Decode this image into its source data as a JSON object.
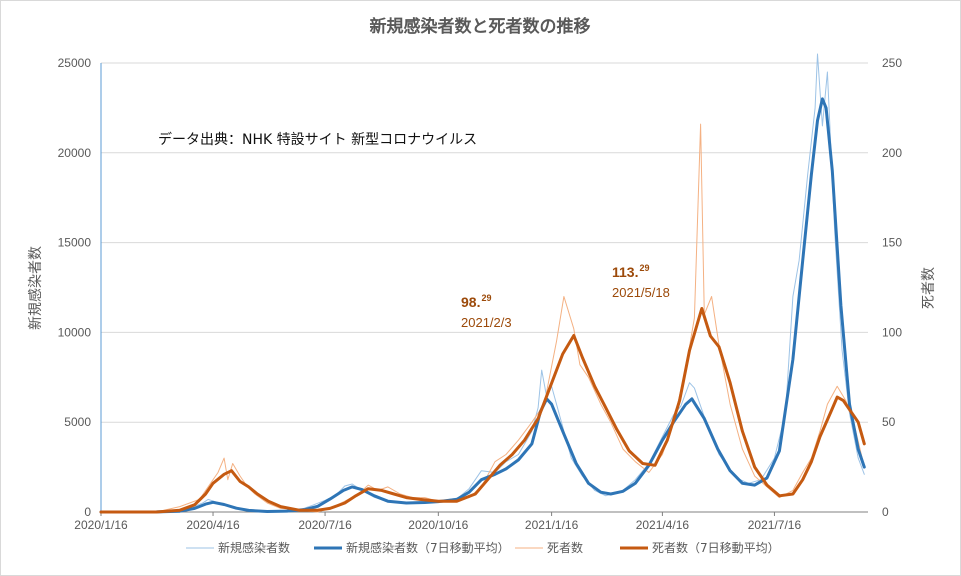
{
  "chart_data": {
    "type": "line",
    "title": "新規感染者数と死者数の推移",
    "source_note": "データ出典：NHK 特設サイト 新型コロナウイルス",
    "ylabel_left": "新規感染者数",
    "ylabel_right": "死者数",
    "ylim_left": [
      0,
      25000
    ],
    "ylim_right": [
      0,
      250
    ],
    "yticks_left": [
      "0",
      "5000",
      "10000",
      "15000",
      "20000",
      "25000"
    ],
    "yticks_right": [
      "0",
      "50",
      "100",
      "150",
      "200",
      "250"
    ],
    "x_start": "2020-01-16",
    "x_end": "2021-09-30",
    "xticks": [
      {
        "date": "2020-01-16",
        "label": "2020/1/16"
      },
      {
        "date": "2020-04-16",
        "label": "2020/4/16"
      },
      {
        "date": "2020-07-16",
        "label": "2020/7/16"
      },
      {
        "date": "2020-10-16",
        "label": "2020/10/16"
      },
      {
        "date": "2021-01-16",
        "label": "2021/1/16"
      },
      {
        "date": "2021-04-16",
        "label": "2021/4/16"
      },
      {
        "date": "2021-07-16",
        "label": "2021/7/16"
      }
    ],
    "grid": true,
    "legend_position": "bottom",
    "colors": {
      "cases_daily": "#9dc3e6",
      "cases_avg": "#2e75b6",
      "deaths_daily": "#f4b183",
      "deaths_avg": "#c55a11",
      "grid": "#d9d9d9",
      "annotation": "#9c4a0a"
    },
    "annotations": [
      {
        "value": "98.",
        "sup": "29",
        "date": "2021/2/3"
      },
      {
        "value": "113.",
        "sup": "29",
        "date": "2021/5/18"
      }
    ],
    "series": [
      {
        "name": "新規感染者数",
        "axis": "left",
        "style": "daily",
        "points": [
          [
            "2020-01-16",
            0
          ],
          [
            "2020-03-01",
            15
          ],
          [
            "2020-03-20",
            60
          ],
          [
            "2020-04-01",
            320
          ],
          [
            "2020-04-08",
            520
          ],
          [
            "2020-04-12",
            700
          ],
          [
            "2020-04-20",
            520
          ],
          [
            "2020-04-30",
            270
          ],
          [
            "2020-05-10",
            110
          ],
          [
            "2020-05-25",
            30
          ],
          [
            "2020-06-10",
            50
          ],
          [
            "2020-06-25",
            110
          ],
          [
            "2020-07-05",
            350
          ],
          [
            "2020-07-16",
            650
          ],
          [
            "2020-07-25",
            950
          ],
          [
            "2020-08-01",
            1450
          ],
          [
            "2020-08-07",
            1560
          ],
          [
            "2020-08-15",
            1200
          ],
          [
            "2020-08-25",
            820
          ],
          [
            "2020-09-05",
            560
          ],
          [
            "2020-09-20",
            500
          ],
          [
            "2020-10-01",
            560
          ],
          [
            "2020-10-16",
            600
          ],
          [
            "2020-11-01",
            780
          ],
          [
            "2020-11-10",
            1300
          ],
          [
            "2020-11-20",
            2300
          ],
          [
            "2020-12-01",
            2200
          ],
          [
            "2020-12-10",
            2800
          ],
          [
            "2020-12-20",
            3200
          ],
          [
            "2020-12-31",
            4500
          ],
          [
            "2021-01-05",
            5800
          ],
          [
            "2021-01-08",
            7900
          ],
          [
            "2021-01-12",
            6400
          ],
          [
            "2021-01-16",
            7000
          ],
          [
            "2021-01-22",
            5500
          ],
          [
            "2021-02-01",
            3000
          ],
          [
            "2021-02-10",
            2000
          ],
          [
            "2021-02-20",
            1200
          ],
          [
            "2021-03-01",
            900
          ],
          [
            "2021-03-15",
            1200
          ],
          [
            "2021-03-25",
            1800
          ],
          [
            "2021-04-05",
            2700
          ],
          [
            "2021-04-16",
            4200
          ],
          [
            "2021-04-25",
            5400
          ],
          [
            "2021-05-01",
            5900
          ],
          [
            "2021-05-08",
            7200
          ],
          [
            "2021-05-12",
            6900
          ],
          [
            "2021-05-20",
            5300
          ],
          [
            "2021-06-01",
            3200
          ],
          [
            "2021-06-15",
            1900
          ],
          [
            "2021-06-25",
            1600
          ],
          [
            "2021-07-05",
            1800
          ],
          [
            "2021-07-16",
            3000
          ],
          [
            "2021-07-25",
            5500
          ],
          [
            "2021-07-31",
            12000
          ],
          [
            "2021-08-05",
            14000
          ],
          [
            "2021-08-12",
            18800
          ],
          [
            "2021-08-18",
            22500
          ],
          [
            "2021-08-20",
            25500
          ],
          [
            "2021-08-24",
            21500
          ],
          [
            "2021-08-28",
            24500
          ],
          [
            "2021-09-03",
            15500
          ],
          [
            "2021-09-09",
            9000
          ],
          [
            "2021-09-15",
            5500
          ],
          [
            "2021-09-22",
            3000
          ],
          [
            "2021-09-27",
            2100
          ]
        ]
      },
      {
        "name": "新規感染者数（7日移動平均）",
        "axis": "left",
        "style": "avg",
        "points": [
          [
            "2020-01-16",
            0
          ],
          [
            "2020-03-01",
            8
          ],
          [
            "2020-03-20",
            45
          ],
          [
            "2020-04-01",
            200
          ],
          [
            "2020-04-10",
            440
          ],
          [
            "2020-04-16",
            540
          ],
          [
            "2020-04-25",
            420
          ],
          [
            "2020-05-05",
            210
          ],
          [
            "2020-05-15",
            90
          ],
          [
            "2020-05-30",
            30
          ],
          [
            "2020-06-15",
            50
          ],
          [
            "2020-06-30",
            140
          ],
          [
            "2020-07-10",
            320
          ],
          [
            "2020-07-20",
            720
          ],
          [
            "2020-07-31",
            1200
          ],
          [
            "2020-08-07",
            1400
          ],
          [
            "2020-08-15",
            1250
          ],
          [
            "2020-08-25",
            900
          ],
          [
            "2020-09-05",
            600
          ],
          [
            "2020-09-20",
            500
          ],
          [
            "2020-10-05",
            530
          ],
          [
            "2020-10-16",
            580
          ],
          [
            "2020-10-31",
            700
          ],
          [
            "2020-11-10",
            1100
          ],
          [
            "2020-11-20",
            1800
          ],
          [
            "2020-12-01",
            2100
          ],
          [
            "2020-12-10",
            2400
          ],
          [
            "2020-12-20",
            2900
          ],
          [
            "2020-12-31",
            3800
          ],
          [
            "2021-01-07",
            5600
          ],
          [
            "2021-01-12",
            6300
          ],
          [
            "2021-01-16",
            6000
          ],
          [
            "2021-01-25",
            4500
          ],
          [
            "2021-02-05",
            2700
          ],
          [
            "2021-02-15",
            1600
          ],
          [
            "2021-02-25",
            1100
          ],
          [
            "2021-03-05",
            1000
          ],
          [
            "2021-03-15",
            1150
          ],
          [
            "2021-03-25",
            1600
          ],
          [
            "2021-04-05",
            2600
          ],
          [
            "2021-04-16",
            4000
          ],
          [
            "2021-04-25",
            5000
          ],
          [
            "2021-05-05",
            6000
          ],
          [
            "2021-05-10",
            6300
          ],
          [
            "2021-05-20",
            5200
          ],
          [
            "2021-05-31",
            3500
          ],
          [
            "2021-06-10",
            2300
          ],
          [
            "2021-06-20",
            1600
          ],
          [
            "2021-06-30",
            1500
          ],
          [
            "2021-07-10",
            1900
          ],
          [
            "2021-07-20",
            3400
          ],
          [
            "2021-07-31",
            8500
          ],
          [
            "2021-08-08",
            14000
          ],
          [
            "2021-08-15",
            18800
          ],
          [
            "2021-08-20",
            21800
          ],
          [
            "2021-08-24",
            23000
          ],
          [
            "2021-08-27",
            22500
          ],
          [
            "2021-09-01",
            19000
          ],
          [
            "2021-09-08",
            11500
          ],
          [
            "2021-09-15",
            6000
          ],
          [
            "2021-09-22",
            3500
          ],
          [
            "2021-09-27",
            2500
          ]
        ]
      },
      {
        "name": "死者数",
        "axis": "right",
        "style": "daily",
        "points": [
          [
            "2020-01-16",
            0
          ],
          [
            "2020-03-01",
            0
          ],
          [
            "2020-03-20",
            3
          ],
          [
            "2020-04-05",
            7
          ],
          [
            "2020-04-12",
            14
          ],
          [
            "2020-04-20",
            22
          ],
          [
            "2020-04-25",
            30
          ],
          [
            "2020-04-28",
            18
          ],
          [
            "2020-05-02",
            27
          ],
          [
            "2020-05-08",
            20
          ],
          [
            "2020-05-14",
            14
          ],
          [
            "2020-05-20",
            10
          ],
          [
            "2020-05-30",
            5
          ],
          [
            "2020-06-10",
            2
          ],
          [
            "2020-06-25",
            1
          ],
          [
            "2020-07-10",
            0
          ],
          [
            "2020-07-20",
            2
          ],
          [
            "2020-08-01",
            6
          ],
          [
            "2020-08-12",
            10
          ],
          [
            "2020-08-20",
            15
          ],
          [
            "2020-08-28",
            12
          ],
          [
            "2020-09-05",
            14
          ],
          [
            "2020-09-15",
            10
          ],
          [
            "2020-09-25",
            8
          ],
          [
            "2020-10-05",
            8
          ],
          [
            "2020-10-16",
            6
          ],
          [
            "2020-10-31",
            7
          ],
          [
            "2020-11-10",
            8
          ],
          [
            "2020-11-20",
            14
          ],
          [
            "2020-12-01",
            28
          ],
          [
            "2020-12-10",
            32
          ],
          [
            "2020-12-20",
            40
          ],
          [
            "2020-12-31",
            50
          ],
          [
            "2021-01-10",
            60
          ],
          [
            "2021-01-20",
            95
          ],
          [
            "2021-01-26",
            120
          ],
          [
            "2021-02-03",
            102
          ],
          [
            "2021-02-08",
            82
          ],
          [
            "2021-02-15",
            75
          ],
          [
            "2021-02-25",
            60
          ],
          [
            "2021-03-05",
            50
          ],
          [
            "2021-03-15",
            35
          ],
          [
            "2021-03-25",
            28
          ],
          [
            "2021-04-05",
            22
          ],
          [
            "2021-04-16",
            32
          ],
          [
            "2021-04-25",
            50
          ],
          [
            "2021-05-05",
            80
          ],
          [
            "2021-05-12",
            108
          ],
          [
            "2021-05-17",
            216
          ],
          [
            "2021-05-20",
            110
          ],
          [
            "2021-05-26",
            120
          ],
          [
            "2021-06-01",
            93
          ],
          [
            "2021-06-10",
            60
          ],
          [
            "2021-06-20",
            35
          ],
          [
            "2021-06-30",
            20
          ],
          [
            "2021-07-10",
            14
          ],
          [
            "2021-07-20",
            8
          ],
          [
            "2021-07-31",
            12
          ],
          [
            "2021-08-08",
            22
          ],
          [
            "2021-08-15",
            30
          ],
          [
            "2021-08-22",
            45
          ],
          [
            "2021-08-28",
            60
          ],
          [
            "2021-09-05",
            70
          ],
          [
            "2021-09-12",
            62
          ],
          [
            "2021-09-19",
            48
          ],
          [
            "2021-09-27",
            25
          ]
        ]
      },
      {
        "name": "死者数（7日移動平均）",
        "axis": "right",
        "style": "avg",
        "points": [
          [
            "2020-01-16",
            0
          ],
          [
            "2020-03-01",
            0
          ],
          [
            "2020-03-20",
            1
          ],
          [
            "2020-04-01",
            4
          ],
          [
            "2020-04-10",
            10
          ],
          [
            "2020-04-16",
            16
          ],
          [
            "2020-04-25",
            21
          ],
          [
            "2020-05-01",
            23
          ],
          [
            "2020-05-08",
            17
          ],
          [
            "2020-05-15",
            14
          ],
          [
            "2020-05-22",
            10
          ],
          [
            "2020-05-31",
            6
          ],
          [
            "2020-06-10",
            3
          ],
          [
            "2020-06-25",
            1
          ],
          [
            "2020-07-10",
            1
          ],
          [
            "2020-07-20",
            2
          ],
          [
            "2020-08-01",
            5
          ],
          [
            "2020-08-10",
            9
          ],
          [
            "2020-08-20",
            13
          ],
          [
            "2020-08-31",
            12
          ],
          [
            "2020-09-10",
            10
          ],
          [
            "2020-09-20",
            8
          ],
          [
            "2020-10-01",
            7
          ],
          [
            "2020-10-16",
            6
          ],
          [
            "2020-10-31",
            6
          ],
          [
            "2020-11-15",
            10
          ],
          [
            "2020-11-25",
            18
          ],
          [
            "2020-12-05",
            26
          ],
          [
            "2020-12-15",
            32
          ],
          [
            "2020-12-25",
            40
          ],
          [
            "2021-01-05",
            52
          ],
          [
            "2021-01-15",
            70
          ],
          [
            "2021-01-25",
            88
          ],
          [
            "2021-02-03",
            98.29
          ],
          [
            "2021-02-10",
            86
          ],
          [
            "2021-02-20",
            70
          ],
          [
            "2021-03-01",
            58
          ],
          [
            "2021-03-10",
            46
          ],
          [
            "2021-03-20",
            34
          ],
          [
            "2021-03-31",
            27
          ],
          [
            "2021-04-10",
            26
          ],
          [
            "2021-04-20",
            40
          ],
          [
            "2021-04-30",
            62
          ],
          [
            "2021-05-08",
            90
          ],
          [
            "2021-05-18",
            113.29
          ],
          [
            "2021-05-25",
            98
          ],
          [
            "2021-06-01",
            92
          ],
          [
            "2021-06-10",
            72
          ],
          [
            "2021-06-20",
            45
          ],
          [
            "2021-06-30",
            25
          ],
          [
            "2021-07-10",
            15
          ],
          [
            "2021-07-20",
            9
          ],
          [
            "2021-07-31",
            10
          ],
          [
            "2021-08-08",
            18
          ],
          [
            "2021-08-15",
            28
          ],
          [
            "2021-08-22",
            42
          ],
          [
            "2021-08-31",
            56
          ],
          [
            "2021-09-05",
            64
          ],
          [
            "2021-09-10",
            62
          ],
          [
            "2021-09-17",
            55
          ],
          [
            "2021-09-22",
            50
          ],
          [
            "2021-09-27",
            38
          ]
        ]
      }
    ]
  }
}
